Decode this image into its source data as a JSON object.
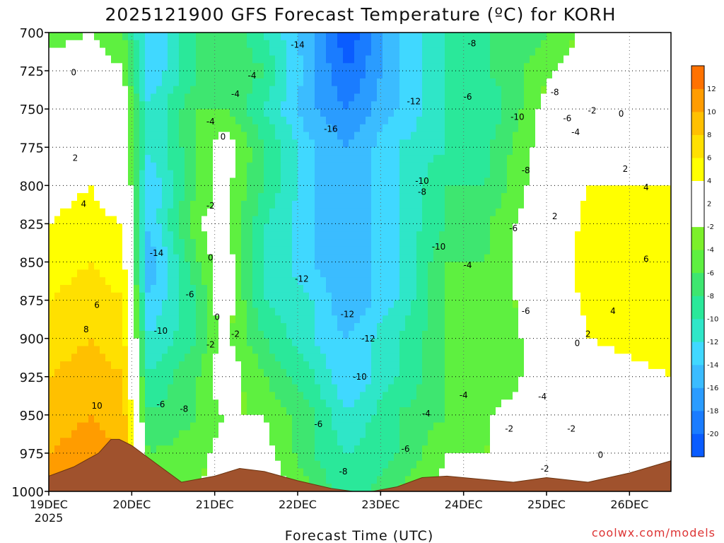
{
  "chart_data": {
    "type": "heatmap",
    "title": "2025121900 GFS Forecast Temperature (ºC) for KORH",
    "xlabel": "Forecast Time (UTC)",
    "ylabel": "",
    "x_ticks": [
      "19DEC",
      "20DEC",
      "21DEC",
      "22DEC",
      "23DEC",
      "24DEC",
      "25DEC",
      "26DEC"
    ],
    "x_subtitle": "2025",
    "y_ticks": [
      700,
      725,
      750,
      775,
      800,
      825,
      850,
      875,
      900,
      925,
      950,
      975,
      1000
    ],
    "ylim": [
      1000,
      700
    ],
    "xlim_days": [
      0,
      7.5
    ],
    "colorbar_levels": [
      -20,
      -18,
      -16,
      -14,
      -12,
      -10,
      -8,
      -6,
      -4,
      -2,
      2,
      4,
      6,
      8,
      10,
      12
    ],
    "colorbar_colors": [
      "#0a5cff",
      "#1a7cff",
      "#2a9cff",
      "#3bbcff",
      "#40d8ff",
      "#2fe6c8",
      "#2ae89a",
      "#3ee670",
      "#5ef040",
      "#7cf02a",
      "#ffffff",
      "#ffff00",
      "#ffe000",
      "#ffc000",
      "#ff9c00",
      "#ff7200"
    ],
    "columns": [
      {
        "day": 0.0,
        "temps": [
          -3,
          -1,
          1,
          2,
          3,
          4,
          5,
          6,
          7,
          8,
          9,
          10,
          11
        ]
      },
      {
        "day": 0.5,
        "temps": [
          -2,
          0,
          2,
          3,
          4,
          5,
          6,
          7,
          8,
          9,
          10,
          11,
          12
        ]
      },
      {
        "day": 0.9,
        "temps": [
          -4,
          -2,
          0,
          1,
          2,
          4,
          5,
          6,
          7,
          8,
          9,
          10,
          11
        ]
      },
      {
        "day": 1.2,
        "temps": [
          -12,
          -12,
          -10,
          -10,
          -12,
          -12,
          -14,
          -12,
          -10,
          -8,
          -6,
          -4,
          -2
        ]
      },
      {
        "day": 1.8,
        "temps": [
          -6,
          -6,
          -4,
          -4,
          -4,
          -2,
          -4,
          -6,
          -6,
          -4,
          -4,
          -3,
          -2
        ]
      },
      {
        "day": 2.1,
        "temps": [
          -4,
          -4,
          -4,
          0,
          -1,
          -1,
          0,
          0,
          -1,
          0,
          -2,
          -1,
          0
        ]
      },
      {
        "day": 2.6,
        "temps": [
          -8,
          -6,
          -8,
          -6,
          -6,
          -8,
          -8,
          -8,
          -6,
          -4,
          -2,
          -1,
          0
        ]
      },
      {
        "day": 3.2,
        "temps": [
          -14,
          -14,
          -14,
          -12,
          -12,
          -12,
          -12,
          -10,
          -10,
          -8,
          -6,
          -6,
          -4
        ]
      },
      {
        "day": 3.6,
        "temps": [
          -20,
          -18,
          -16,
          -14,
          -14,
          -14,
          -14,
          -14,
          -12,
          -12,
          -10,
          -8,
          -8
        ]
      },
      {
        "day": 4.2,
        "temps": [
          -12,
          -12,
          -12,
          -10,
          -10,
          -10,
          -10,
          -10,
          -8,
          -8,
          -6,
          -6,
          -4
        ]
      },
      {
        "day": 4.8,
        "temps": [
          -8,
          -8,
          -8,
          -8,
          -6,
          -6,
          -4,
          -4,
          -4,
          -4,
          -4,
          -2,
          -1
        ]
      },
      {
        "day": 5.3,
        "temps": [
          -6,
          -6,
          -8,
          -6,
          -6,
          -4,
          -4,
          -4,
          -4,
          -4,
          -2,
          -2,
          0
        ]
      },
      {
        "day": 6.1,
        "temps": [
          -4,
          -2,
          0,
          0,
          1,
          1,
          2,
          1,
          0,
          0,
          0,
          0,
          1
        ]
      },
      {
        "day": 6.5,
        "temps": [
          -1,
          0,
          1,
          3,
          4,
          5,
          6,
          5,
          4,
          3,
          2,
          2,
          2
        ]
      },
      {
        "day": 7.5,
        "temps": [
          0,
          1,
          2,
          3,
          4,
          5,
          6,
          6,
          5,
          4,
          3,
          3,
          3
        ]
      }
    ],
    "contour_labels": [
      {
        "text": "0",
        "day": 0.3,
        "p": 728
      },
      {
        "text": "2",
        "day": 0.32,
        "p": 784
      },
      {
        "text": "4",
        "day": 0.42,
        "p": 814
      },
      {
        "text": "6",
        "day": 0.58,
        "p": 880
      },
      {
        "text": "8",
        "day": 0.45,
        "p": 896
      },
      {
        "text": "10",
        "day": 0.58,
        "p": 946
      },
      {
        "text": "-14",
        "day": 1.3,
        "p": 846
      },
      {
        "text": "-10",
        "day": 1.35,
        "p": 897
      },
      {
        "text": "-6",
        "day": 1.35,
        "p": 945
      },
      {
        "text": "-8",
        "day": 1.63,
        "p": 948
      },
      {
        "text": "-6",
        "day": 1.7,
        "p": 873
      },
      {
        "text": "-4",
        "day": 1.95,
        "p": 760
      },
      {
        "text": "-2",
        "day": 1.95,
        "p": 906
      },
      {
        "text": "-2",
        "day": 1.95,
        "p": 815
      },
      {
        "text": "0",
        "day": 2.1,
        "p": 770
      },
      {
        "text": "0",
        "day": 1.95,
        "p": 849
      },
      {
        "text": "0",
        "day": 2.03,
        "p": 888
      },
      {
        "text": "-2",
        "day": 2.25,
        "p": 899
      },
      {
        "text": "-4",
        "day": 2.45,
        "p": 730
      },
      {
        "text": "-4",
        "day": 2.25,
        "p": 742
      },
      {
        "text": "-14",
        "day": 3.0,
        "p": 710
      },
      {
        "text": "-16",
        "day": 3.4,
        "p": 765
      },
      {
        "text": "-12",
        "day": 3.05,
        "p": 863
      },
      {
        "text": "-12",
        "day": 3.6,
        "p": 886
      },
      {
        "text": "-12",
        "day": 3.85,
        "p": 902
      },
      {
        "text": "-10",
        "day": 3.75,
        "p": 927
      },
      {
        "text": "-6",
        "day": 3.25,
        "p": 958
      },
      {
        "text": "-8",
        "day": 3.55,
        "p": 989
      },
      {
        "text": "-12",
        "day": 4.4,
        "p": 747
      },
      {
        "text": "-10",
        "day": 4.5,
        "p": 799
      },
      {
        "text": "-8",
        "day": 4.5,
        "p": 806
      },
      {
        "text": "-10",
        "day": 4.7,
        "p": 842
      },
      {
        "text": "-6",
        "day": 4.3,
        "p": 974
      },
      {
        "text": "-4",
        "day": 4.55,
        "p": 951
      },
      {
        "text": "-8",
        "day": 5.1,
        "p": 709
      },
      {
        "text": "-6",
        "day": 5.05,
        "p": 744
      },
      {
        "text": "-4",
        "day": 5.05,
        "p": 854
      },
      {
        "text": "-4",
        "day": 5.0,
        "p": 939
      },
      {
        "text": "-10",
        "day": 5.65,
        "p": 757
      },
      {
        "text": "-8",
        "day": 5.75,
        "p": 792
      },
      {
        "text": "-6",
        "day": 5.6,
        "p": 830
      },
      {
        "text": "-6",
        "day": 5.75,
        "p": 884
      },
      {
        "text": "-4",
        "day": 5.95,
        "p": 940
      },
      {
        "text": "-2",
        "day": 5.55,
        "p": 961
      },
      {
        "text": "-8",
        "day": 6.1,
        "p": 741
      },
      {
        "text": "-6",
        "day": 6.25,
        "p": 758
      },
      {
        "text": "-4",
        "day": 6.35,
        "p": 767
      },
      {
        "text": "-2",
        "day": 6.55,
        "p": 753
      },
      {
        "text": "0",
        "day": 6.9,
        "p": 755
      },
      {
        "text": "2",
        "day": 6.1,
        "p": 822
      },
      {
        "text": "-2",
        "day": 6.3,
        "p": 961
      },
      {
        "text": "-2",
        "day": 5.98,
        "p": 987
      },
      {
        "text": "0",
        "day": 6.65,
        "p": 978
      },
      {
        "text": "0",
        "day": 6.37,
        "p": 905
      },
      {
        "text": "2",
        "day": 6.5,
        "p": 899
      },
      {
        "text": "2",
        "day": 6.95,
        "p": 791
      },
      {
        "text": "4",
        "day": 7.2,
        "p": 803
      },
      {
        "text": "6",
        "day": 7.2,
        "p": 850
      },
      {
        "text": "4",
        "day": 6.8,
        "p": 884
      }
    ]
  },
  "credit": "coolwx.com/models"
}
